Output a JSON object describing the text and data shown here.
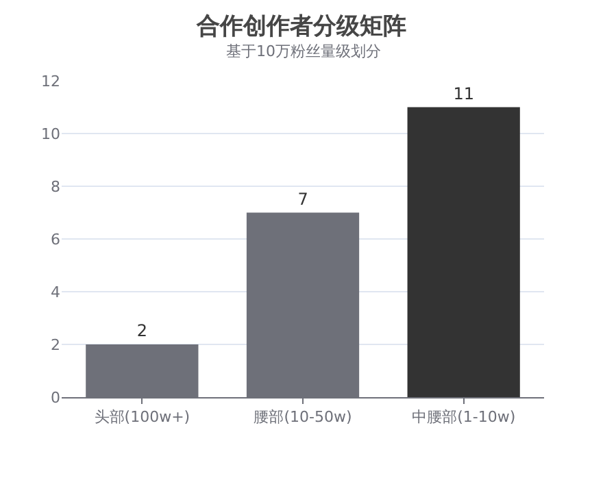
{
  "chart_data": {
    "type": "bar",
    "title": "合作创作者分级矩阵",
    "subtitle": "基于10万粉丝量级划分",
    "categories": [
      "头部(100w+)",
      "腰部(10-50w)",
      "中腰部(1-10w)"
    ],
    "values": [
      2,
      7,
      11
    ],
    "colors": [
      "#6e7079",
      "#6e7079",
      "#333333"
    ],
    "ylim": [
      0,
      12
    ],
    "yticks": [
      0,
      2,
      4,
      6,
      8,
      10,
      12
    ],
    "grid": "y",
    "data_labels": true
  }
}
